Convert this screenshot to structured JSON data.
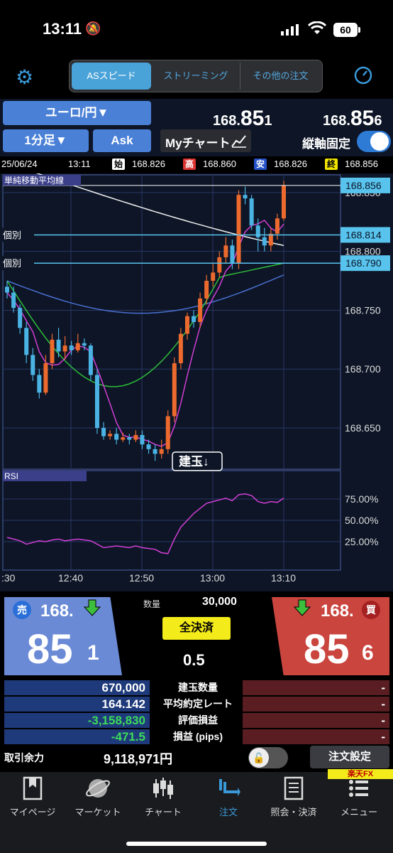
{
  "status": {
    "time": "13:11",
    "battery": "60"
  },
  "header": {
    "tabs": [
      {
        "label": "ASスピード",
        "active": true
      },
      {
        "label": "ストリーミング",
        "active": false
      },
      {
        "label": "その他の注文",
        "active": false
      }
    ]
  },
  "controls": {
    "pair": "ユーロ/円▼",
    "timeframe": "1分足▼",
    "side": "Ask",
    "my_chart": "Myチャート",
    "fixed_axis": "縦軸固定",
    "fixed_axis_on": true
  },
  "quotes": {
    "bid_prefix": "168.",
    "bid_big": "85",
    "bid_small": "1",
    "ask_prefix": "168.",
    "ask_big": "85",
    "ask_small": "6"
  },
  "ohlc": {
    "date": "25/06/24",
    "time": "13:11",
    "open_tag": "始",
    "open": "168.826",
    "high_tag": "高",
    "high": "168.860",
    "low_tag": "安",
    "low": "168.826",
    "close_tag": "終",
    "close": "168.856"
  },
  "chart_data": {
    "type": "candlestick",
    "indicator_label": "単純移動平均線",
    "rsi_label": "RSI",
    "position_button": "建玉↓",
    "price_lines": [
      {
        "label": "個別",
        "value": "168.814"
      },
      {
        "label": "個別",
        "value": "168.790"
      }
    ],
    "current_price": "168.856",
    "y_ticks": [
      "168.850",
      "168.800",
      "168.750",
      "168.700",
      "168.650"
    ],
    "rsi_ticks": [
      "75.00%",
      "50.00%",
      "25.00%"
    ],
    "x_ticks": [
      ":30",
      "12:40",
      "12:50",
      "13:00",
      "13:10"
    ],
    "ylim": [
      168.615,
      168.865
    ],
    "candles": [
      [
        168.77,
        168.765,
        168.775,
        168.76
      ],
      [
        168.765,
        168.752,
        168.77,
        168.748
      ],
      [
        168.752,
        168.735,
        168.755,
        168.73
      ],
      [
        168.735,
        168.712,
        168.74,
        168.705
      ],
      [
        168.712,
        168.695,
        168.718,
        168.69
      ],
      [
        168.695,
        168.68,
        168.7,
        168.675
      ],
      [
        168.68,
        168.705,
        168.712,
        168.678
      ],
      [
        168.705,
        168.725,
        168.73,
        168.7
      ],
      [
        168.725,
        168.715,
        168.735,
        168.71
      ],
      [
        168.715,
        168.72,
        168.728,
        168.708
      ],
      [
        168.72,
        168.716,
        168.724,
        168.712
      ],
      [
        168.716,
        168.722,
        168.73,
        168.714
      ],
      [
        168.722,
        168.72,
        168.726,
        168.716
      ],
      [
        168.72,
        168.695,
        168.722,
        168.69
      ],
      [
        168.695,
        168.65,
        168.7,
        168.645
      ],
      [
        168.65,
        168.643,
        168.655,
        168.64
      ],
      [
        168.643,
        168.645,
        168.648,
        168.64
      ],
      [
        168.645,
        168.64,
        168.65,
        168.636
      ],
      [
        168.64,
        168.642,
        168.646,
        168.638
      ],
      [
        168.642,
        168.64,
        168.645,
        168.636
      ],
      [
        168.64,
        168.644,
        168.648,
        168.638
      ],
      [
        168.644,
        168.636,
        168.648,
        168.632
      ],
      [
        168.636,
        168.632,
        168.64,
        168.628
      ],
      [
        168.632,
        168.628,
        168.636,
        168.622
      ],
      [
        168.628,
        168.632,
        168.64,
        168.624
      ],
      [
        168.632,
        168.66,
        168.665,
        168.628
      ],
      [
        168.66,
        168.705,
        168.71,
        168.655
      ],
      [
        168.705,
        168.73,
        168.735,
        168.7
      ],
      [
        168.73,
        168.745,
        168.748,
        168.725
      ],
      [
        168.745,
        168.74,
        168.75,
        168.735
      ],
      [
        168.74,
        168.76,
        168.765,
        168.735
      ],
      [
        168.76,
        168.775,
        168.78,
        168.755
      ],
      [
        168.775,
        168.782,
        168.79,
        168.77
      ],
      [
        168.782,
        168.795,
        168.8,
        168.778
      ],
      [
        168.795,
        168.805,
        168.812,
        168.79
      ],
      [
        168.805,
        168.79,
        168.81,
        168.785
      ],
      [
        168.79,
        168.848,
        168.852,
        168.785
      ],
      [
        168.848,
        168.845,
        168.855,
        168.84
      ],
      [
        168.845,
        168.822,
        168.848,
        168.818
      ],
      [
        168.822,
        168.812,
        168.828,
        168.8
      ],
      [
        168.812,
        168.805,
        168.82,
        168.8
      ],
      [
        168.805,
        168.815,
        168.82,
        168.8
      ],
      [
        168.815,
        168.828,
        168.832,
        168.81
      ],
      [
        168.828,
        168.856,
        168.86,
        168.826
      ]
    ],
    "rsi": [
      30,
      28,
      26,
      22,
      24,
      26,
      25,
      27,
      28,
      26,
      27,
      28,
      27,
      26,
      22,
      18,
      19,
      20,
      19,
      18,
      20,
      18,
      17,
      16,
      12,
      11,
      28,
      42,
      50,
      58,
      64,
      70,
      72,
      74,
      76,
      73,
      80,
      81,
      79,
      72,
      70,
      72,
      71,
      76
    ]
  },
  "trade": {
    "sell_label": "売",
    "buy_label": "買",
    "quantity_label": "数量",
    "quantity": "30,000",
    "close_all": "全決済",
    "spread": "0.5",
    "rows": [
      {
        "left": "670,000",
        "label": "建玉数量",
        "right": "-",
        "left_color": "#ffffff"
      },
      {
        "left": "164.142",
        "label": "平均約定レート",
        "right": "-",
        "left_color": "#ffffff"
      },
      {
        "left": "-3,158,830",
        "label": "評価損益",
        "right": "-",
        "left_color": "#3ddc5a"
      },
      {
        "left": "-471.5",
        "label": "損益 (pips)",
        "right": "-",
        "left_color": "#3ddc5a"
      }
    ],
    "margin_label": "取引余力",
    "margin_value": "9,118,971円",
    "order_settings": "注文設定",
    "brand": "楽天FX"
  },
  "tabbar": [
    {
      "label": "マイページ",
      "icon": "bookmark-icon",
      "active": false
    },
    {
      "label": "マーケット",
      "icon": "globe-icon",
      "active": false
    },
    {
      "label": "チャート",
      "icon": "candles-icon",
      "active": false
    },
    {
      "label": "注文",
      "icon": "order-icon",
      "active": true
    },
    {
      "label": "照会・決済",
      "icon": "list-icon",
      "active": false
    },
    {
      "label": "メニュー",
      "icon": "menu-icon",
      "active": false
    }
  ]
}
